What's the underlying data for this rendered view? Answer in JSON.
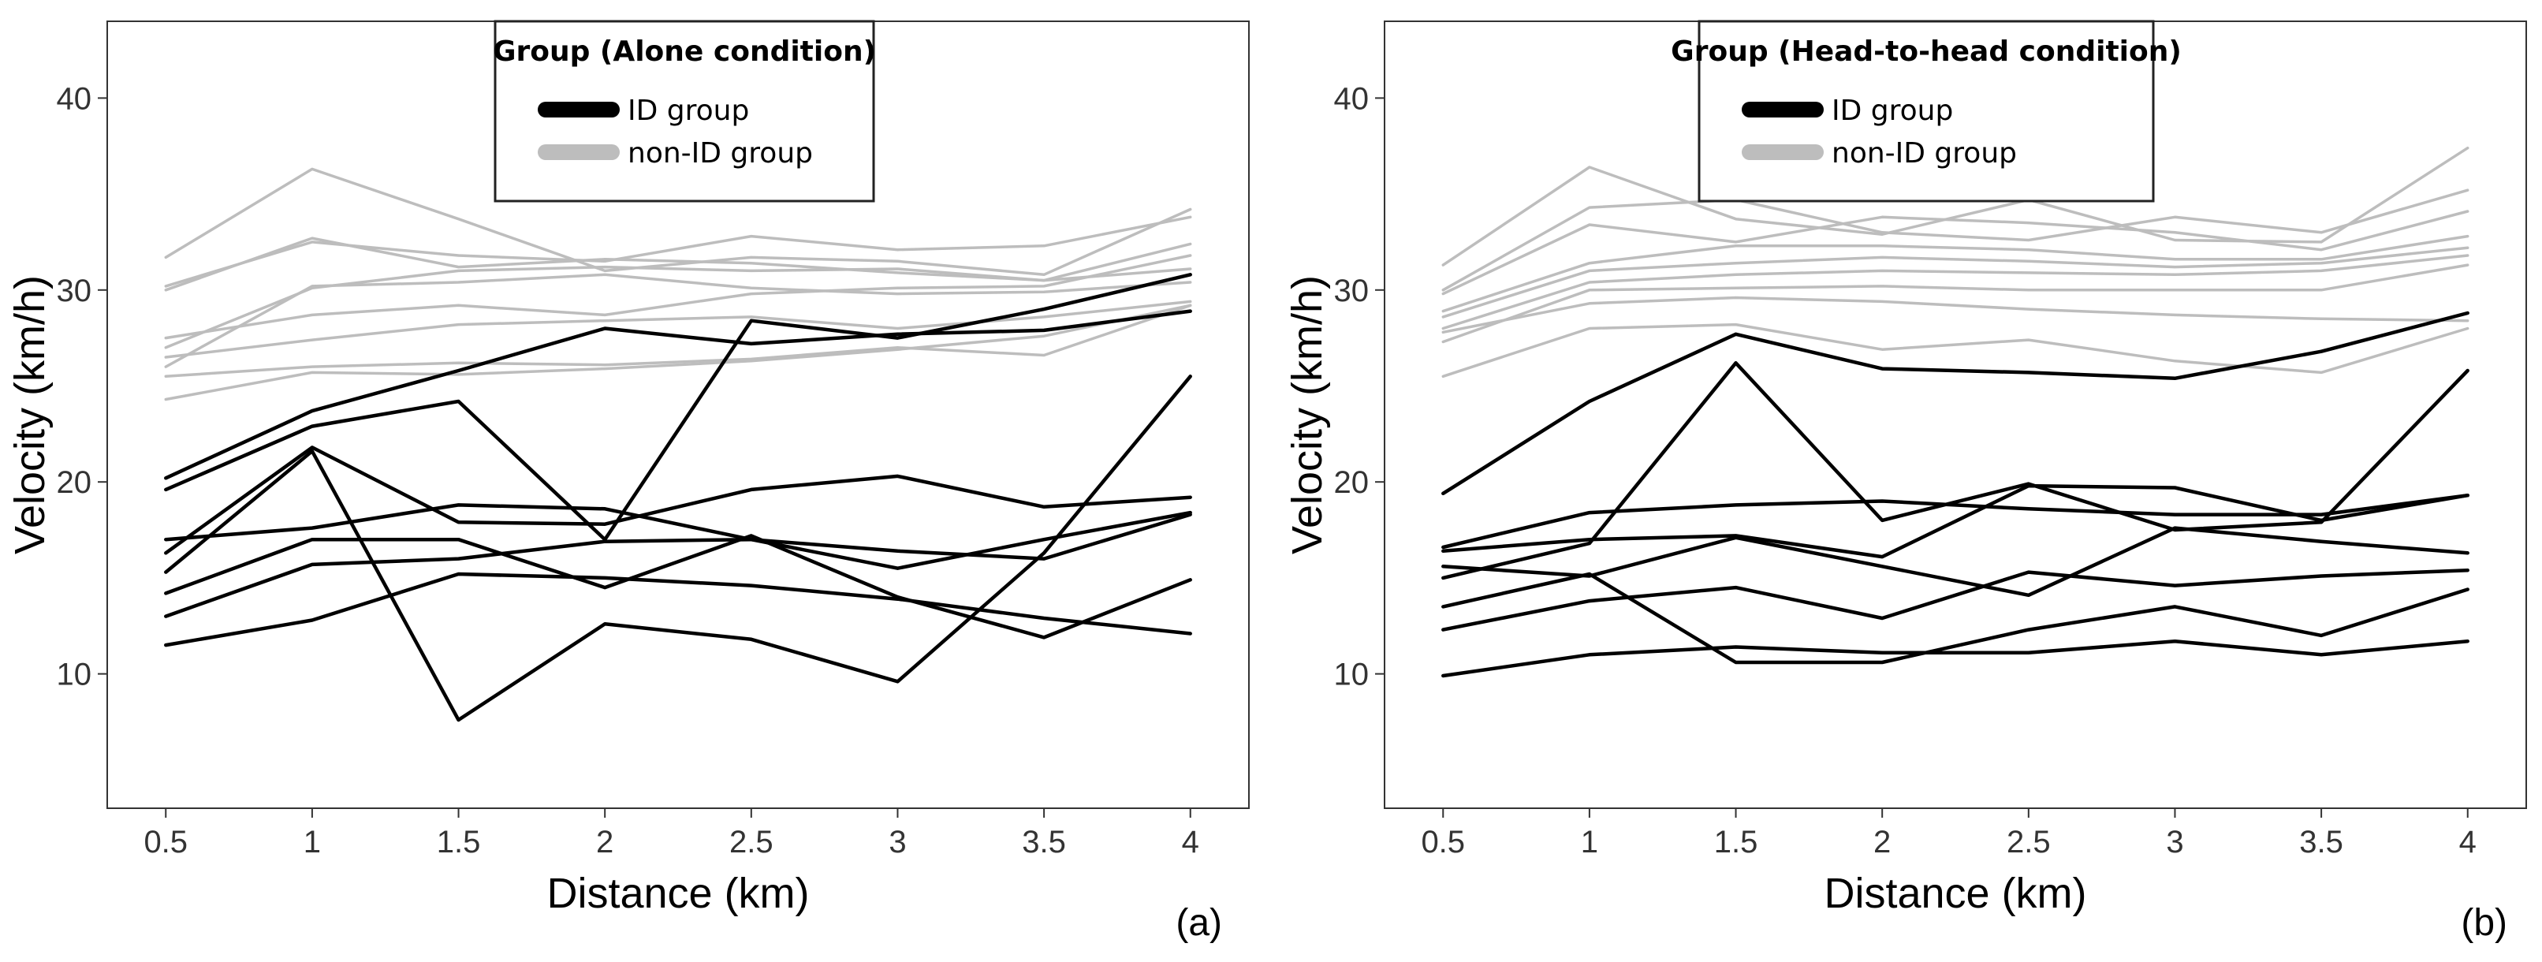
{
  "chart_data": [
    {
      "type": "line",
      "panel_tag": "(a)",
      "xlabel": "Distance (km)",
      "ylabel": "Velocity (km/h)",
      "x": [
        0.5,
        1,
        1.5,
        2,
        2.5,
        3,
        3.5,
        4
      ],
      "x_ticks": [
        "0.5",
        "1",
        "1.5",
        "2",
        "2.5",
        "3",
        "3.5",
        "4"
      ],
      "y_ticks": [
        "10",
        "20",
        "30",
        "40"
      ],
      "xlim": [
        0.3,
        4.2
      ],
      "ylim": [
        3,
        44
      ],
      "grid": false,
      "legend": {
        "title": "Group (Alone condition)",
        "position": "top-center",
        "entries": [
          {
            "label": "ID group",
            "color": "#000000"
          },
          {
            "label": "non-ID group",
            "color": "#bdbdbd"
          }
        ]
      },
      "series": [
        {
          "group": "non-ID",
          "values": [
            31.7,
            36.3,
            33.7,
            31.0,
            31.7,
            31.5,
            30.8,
            34.2
          ]
        },
        {
          "group": "non-ID",
          "values": [
            30.2,
            32.5,
            31.8,
            31.5,
            32.8,
            32.1,
            32.3,
            33.8
          ]
        },
        {
          "group": "non-ID",
          "values": [
            30.0,
            32.7,
            31.2,
            31.6,
            31.4,
            30.9,
            30.5,
            32.4
          ]
        },
        {
          "group": "non-ID",
          "values": [
            27.0,
            30.1,
            31.0,
            31.2,
            31.0,
            31.1,
            30.5,
            31.1
          ]
        },
        {
          "group": "non-ID",
          "values": [
            26.0,
            30.2,
            30.4,
            30.8,
            30.1,
            29.8,
            29.9,
            30.4
          ]
        },
        {
          "group": "non-ID",
          "values": [
            27.5,
            28.7,
            29.2,
            28.7,
            29.8,
            30.1,
            30.2,
            31.8
          ]
        },
        {
          "group": "non-ID",
          "values": [
            26.5,
            27.4,
            28.2,
            28.4,
            28.6,
            28.0,
            28.6,
            29.4
          ]
        },
        {
          "group": "non-ID",
          "values": [
            25.5,
            26.0,
            26.2,
            26.1,
            26.4,
            27.0,
            26.6,
            29.2
          ]
        },
        {
          "group": "non-ID",
          "values": [
            24.3,
            25.7,
            25.6,
            25.9,
            26.3,
            26.9,
            27.6,
            29.2
          ]
        },
        {
          "group": "ID",
          "values": [
            20.2,
            23.7,
            25.8,
            28.0,
            27.2,
            27.7,
            27.9,
            28.9
          ]
        },
        {
          "group": "ID",
          "values": [
            19.6,
            22.9,
            24.2,
            17.0,
            28.4,
            27.5,
            29.0,
            30.8
          ]
        },
        {
          "group": "ID",
          "values": [
            17.0,
            17.6,
            18.8,
            18.6,
            17.0,
            16.4,
            16.0,
            18.3
          ]
        },
        {
          "group": "ID",
          "values": [
            16.3,
            21.8,
            17.9,
            17.8,
            19.6,
            20.3,
            18.7,
            19.2
          ]
        },
        {
          "group": "ID",
          "values": [
            15.3,
            21.6,
            7.6,
            12.6,
            11.8,
            9.6,
            16.3,
            25.5
          ]
        },
        {
          "group": "ID",
          "values": [
            14.2,
            17.0,
            17.0,
            14.5,
            17.2,
            14.0,
            11.9,
            14.9
          ]
        },
        {
          "group": "ID",
          "values": [
            13.0,
            15.7,
            16.0,
            16.9,
            17.0,
            15.5,
            17.0,
            18.4
          ]
        },
        {
          "group": "ID",
          "values": [
            11.5,
            12.8,
            15.2,
            15.0,
            14.6,
            13.9,
            12.9,
            12.1
          ]
        }
      ]
    },
    {
      "type": "line",
      "panel_tag": "(b)",
      "xlabel": "Distance (km)",
      "ylabel": "Velocity (km/h)",
      "x": [
        0.5,
        1,
        1.5,
        2,
        2.5,
        3,
        3.5,
        4
      ],
      "x_ticks": [
        "0.5",
        "1",
        "1.5",
        "2",
        "2.5",
        "3",
        "3.5",
        "4"
      ],
      "y_ticks": [
        "10",
        "20",
        "30",
        "40"
      ],
      "xlim": [
        0.3,
        4.2
      ],
      "ylim": [
        3,
        44
      ],
      "grid": false,
      "legend": {
        "title": "Group (Head-to-head condition)",
        "position": "top-center",
        "entries": [
          {
            "label": "ID group",
            "color": "#000000"
          },
          {
            "label": "non-ID group",
            "color": "#bdbdbd"
          }
        ]
      },
      "series": [
        {
          "group": "non-ID",
          "values": [
            31.3,
            36.4,
            33.7,
            32.9,
            34.7,
            32.6,
            32.5,
            37.4
          ]
        },
        {
          "group": "non-ID",
          "values": [
            30.0,
            34.3,
            34.7,
            33.0,
            32.6,
            33.8,
            33.0,
            35.2
          ]
        },
        {
          "group": "non-ID",
          "values": [
            29.8,
            33.4,
            32.5,
            33.8,
            33.5,
            33.0,
            32.1,
            34.1
          ]
        },
        {
          "group": "non-ID",
          "values": [
            28.9,
            31.4,
            32.3,
            32.3,
            32.1,
            31.6,
            31.6,
            32.8
          ]
        },
        {
          "group": "non-ID",
          "values": [
            28.6,
            31.0,
            31.4,
            31.7,
            31.5,
            31.2,
            31.4,
            32.2
          ]
        },
        {
          "group": "non-ID",
          "values": [
            28.0,
            30.4,
            30.8,
            31.0,
            30.9,
            30.8,
            31.0,
            31.8
          ]
        },
        {
          "group": "non-ID",
          "values": [
            27.3,
            30.0,
            30.1,
            30.2,
            30.0,
            30.0,
            30.0,
            31.3
          ]
        },
        {
          "group": "non-ID",
          "values": [
            27.8,
            29.3,
            29.6,
            29.4,
            29.0,
            28.7,
            28.5,
            28.4
          ]
        },
        {
          "group": "non-ID",
          "values": [
            25.5,
            28.0,
            28.2,
            26.9,
            27.4,
            26.3,
            25.7,
            28.0
          ]
        },
        {
          "group": "ID",
          "values": [
            19.4,
            24.2,
            27.7,
            25.9,
            25.7,
            25.4,
            26.8,
            28.8
          ]
        },
        {
          "group": "ID",
          "values": [
            16.6,
            18.4,
            18.8,
            19.0,
            18.6,
            18.3,
            18.3,
            19.3
          ]
        },
        {
          "group": "ID",
          "values": [
            16.4,
            17.0,
            17.2,
            16.1,
            19.8,
            19.7,
            18.0,
            19.3
          ]
        },
        {
          "group": "ID",
          "values": [
            15.6,
            15.1,
            17.1,
            15.6,
            14.1,
            17.6,
            16.9,
            16.3
          ]
        },
        {
          "group": "ID",
          "values": [
            15.0,
            16.8,
            26.2,
            18.0,
            19.9,
            17.5,
            17.9,
            25.8
          ]
        },
        {
          "group": "ID",
          "values": [
            13.5,
            15.2,
            10.6,
            10.6,
            12.3,
            13.5,
            12.0,
            14.4
          ]
        },
        {
          "group": "ID",
          "values": [
            12.3,
            13.8,
            14.5,
            12.9,
            15.3,
            14.6,
            15.1,
            15.4
          ]
        },
        {
          "group": "ID",
          "values": [
            9.9,
            11.0,
            11.4,
            11.1,
            11.1,
            11.7,
            11.0,
            11.7
          ]
        }
      ]
    }
  ]
}
